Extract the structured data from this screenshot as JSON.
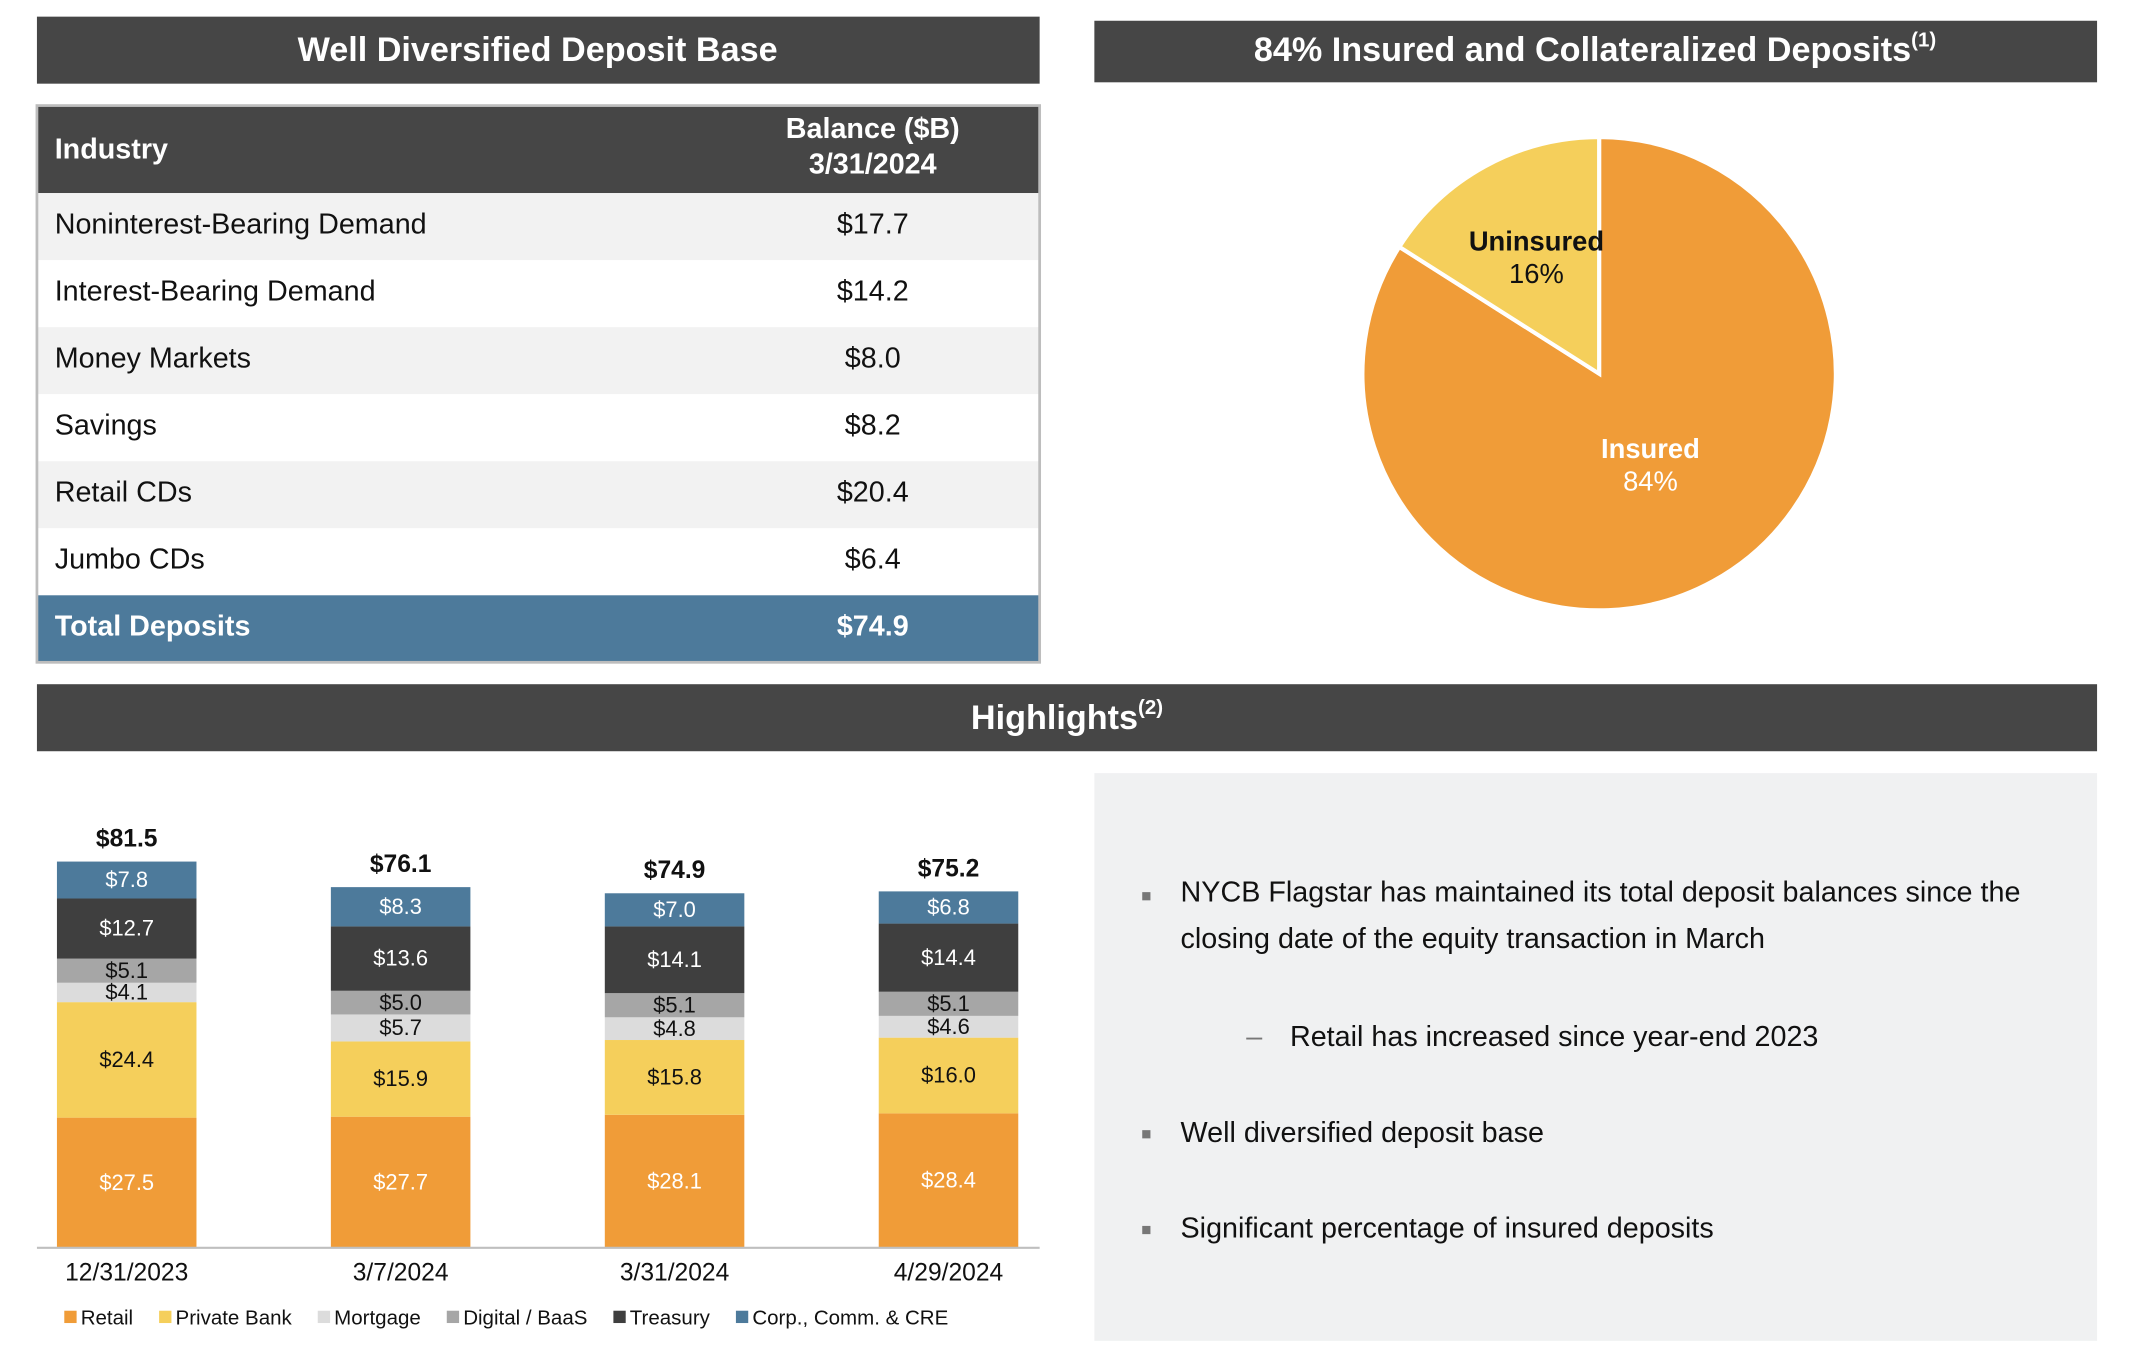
{
  "table": {
    "title": "Well Diversified Deposit Base",
    "header": [
      "Industry",
      "Balance ($B)",
      "3/31/2024"
    ],
    "rows": [
      [
        "Noninterest-Bearing Demand",
        "$17.7"
      ],
      [
        "Interest-Bearing Demand",
        "$14.2"
      ],
      [
        "Money Markets",
        "$8.0"
      ],
      [
        "Savings",
        "$8.2"
      ],
      [
        "Retail CDs",
        "$20.4"
      ],
      [
        "Jumbo CDs",
        "$6.4"
      ]
    ],
    "total": [
      "Total Deposits",
      "$74.9"
    ]
  },
  "highlights": {
    "title": "Highlights",
    "title_note": "(2)",
    "bullets": [
      "NYCB Flagstar has maintained its total deposit balances since the closing date of the equity transaction in March",
      "Retail has increased since year-end 2023",
      "Well diversified deposit base",
      "Significant percentage of insured deposits"
    ],
    "sub_bullet_marker": "–"
  },
  "chart_data": [
    {
      "type": "pie",
      "title": "84% Insured and Collateralized Deposits",
      "title_note": "(1)",
      "categories": [
        "Insured",
        "Uninsured"
      ],
      "values": [
        84,
        16
      ],
      "value_labels": [
        "84%",
        "16%"
      ],
      "colors": [
        "#f09c38",
        "#f5cf5b"
      ],
      "label_colors": [
        "#ffffff",
        "#111111"
      ]
    },
    {
      "type": "stacked_bar",
      "categories": [
        "12/31/2023",
        "3/7/2024",
        "3/31/2024",
        "4/29/2024"
      ],
      "series": [
        {
          "name": "Retail",
          "color": "#f09c38",
          "label_color": "#ffffff",
          "values": [
            27.5,
            27.7,
            28.1,
            28.4
          ],
          "value_labels": [
            "$27.5",
            "$27.7",
            "$28.1",
            "$28.4"
          ]
        },
        {
          "name": "Private Bank",
          "color": "#f5cf5b",
          "label_color": "#111111",
          "values": [
            24.4,
            15.9,
            15.8,
            16.0
          ],
          "value_labels": [
            "$24.4",
            "$15.9",
            "$15.8",
            "$16.0"
          ]
        },
        {
          "name": "Mortgage",
          "color": "#dcdcdc",
          "label_color": "#111111",
          "values": [
            4.1,
            5.7,
            4.8,
            4.6
          ],
          "value_labels": [
            "$4.1",
            "$5.7",
            "$4.8",
            "$4.6"
          ]
        },
        {
          "name": "Digital / BaaS",
          "color": "#a6a6a6",
          "label_color": "#111111",
          "values": [
            5.1,
            5.0,
            5.1,
            5.1
          ],
          "value_labels": [
            "$5.1",
            "$5.0",
            "$5.1",
            "$5.1"
          ]
        },
        {
          "name": "Treasury",
          "color": "#3f3f3f",
          "label_color": "#ffffff",
          "values": [
            12.7,
            13.6,
            14.1,
            14.4
          ],
          "value_labels": [
            "$12.7",
            "$13.6",
            "$14.1",
            "$14.4"
          ]
        },
        {
          "name": "Corp., Comm. & CRE",
          "color": "#4d7a9b",
          "label_color": "#ffffff",
          "values": [
            7.8,
            8.3,
            7.0,
            6.8
          ],
          "value_labels": [
            "$7.8",
            "$8.3",
            "$7.0",
            "$6.8"
          ]
        }
      ],
      "totals": [
        81.5,
        76.1,
        74.9,
        75.2
      ],
      "total_labels": [
        "$81.5",
        "$76.1",
        "$74.9",
        "$75.2"
      ]
    }
  ]
}
